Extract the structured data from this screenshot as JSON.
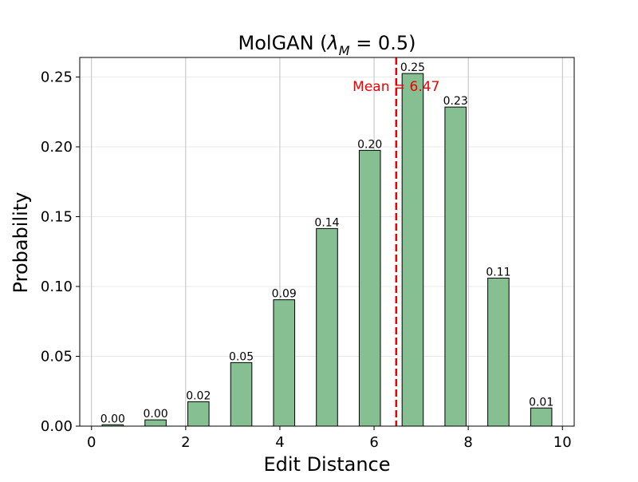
{
  "chart_data": {
    "type": "bar",
    "title_prefix": "MolGAN (",
    "title_symbol": "λ",
    "title_subscript": "M",
    "title_suffix": " = 0.5)",
    "xlabel": "Edit Distance",
    "ylabel": "Probability",
    "xlim": [
      -0.25,
      10.25
    ],
    "ylim": [
      0,
      0.264
    ],
    "x_ticks": [
      0,
      2,
      4,
      6,
      8,
      10
    ],
    "y_ticks": [
      0.0,
      0.05,
      0.1,
      0.15,
      0.2,
      0.25
    ],
    "y_tick_labels": [
      "0.00",
      "0.05",
      "0.10",
      "0.15",
      "0.20",
      "0.25"
    ],
    "grid": true,
    "bar_width": 0.45,
    "bar_color": "#86bf91",
    "bar_edge_color": "#000000",
    "x": [
      0.45,
      1.36,
      2.27,
      3.18,
      4.09,
      5.0,
      5.91,
      6.82,
      7.73,
      8.64,
      9.55
    ],
    "values": [
      0.001,
      0.0045,
      0.0175,
      0.0455,
      0.0905,
      0.1415,
      0.1975,
      0.2525,
      0.2285,
      0.106,
      0.013
    ],
    "data_labels": [
      "0.00",
      "0.00",
      "0.02",
      "0.05",
      "0.09",
      "0.14",
      "0.20",
      "0.25",
      "0.23",
      "0.11",
      "0.01"
    ],
    "mean": 6.47,
    "mean_label": "Mean = 6.47",
    "mean_color": "#ee0000"
  }
}
